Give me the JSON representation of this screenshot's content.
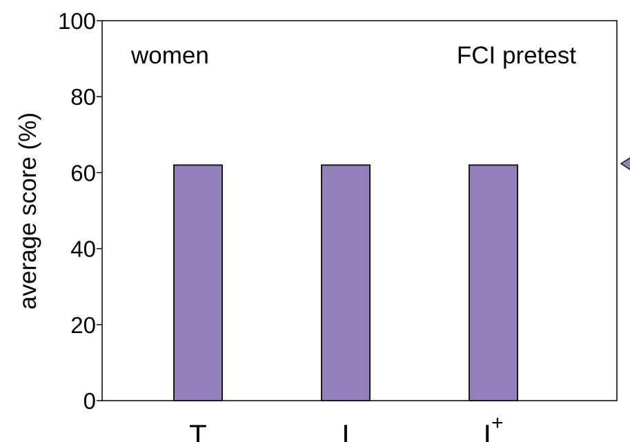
{
  "colors": {
    "bar_fill": "#9180BA",
    "bar_stroke": "#1A1A1A",
    "axis": "#000000",
    "marker_fill": "#9180BA"
  },
  "chart_data": {
    "type": "bar",
    "ylabel": "average score (%)",
    "ylim": [
      0,
      100
    ],
    "yticks": [
      0,
      20,
      40,
      60,
      80,
      100
    ],
    "categories": [
      "T",
      "I",
      "I+"
    ],
    "category_labels": [
      {
        "base": "T",
        "sup": ""
      },
      {
        "base": "I",
        "sup": ""
      },
      {
        "base": "I",
        "sup": "+"
      }
    ],
    "values": [
      62,
      62,
      62
    ],
    "annotations": {
      "left": "women",
      "right": "FCI pretest"
    },
    "marker": {
      "value": 62,
      "shape": "triangle-left",
      "side": "right-outside"
    },
    "grid": false,
    "legend": "none"
  }
}
